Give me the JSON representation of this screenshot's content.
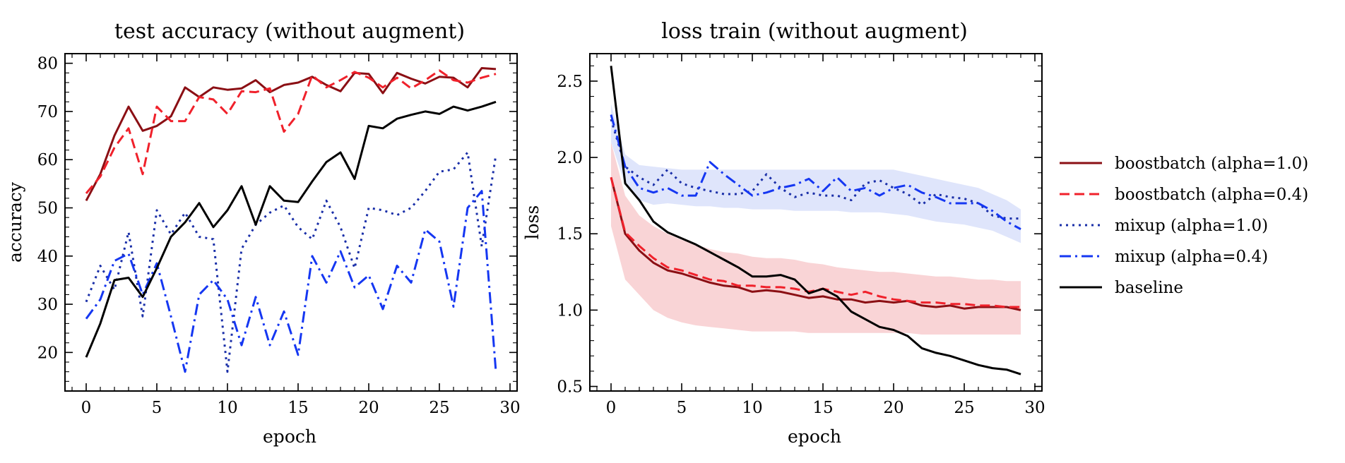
{
  "legend": {
    "position": "right",
    "entries": [
      {
        "label": "boostbatch (alpha=1.0)",
        "color": "#8b0f14",
        "dash": "solid"
      },
      {
        "label": "boostbatch (alpha=0.4)",
        "color": "#f0212b",
        "dash": "dashed"
      },
      {
        "label": "mixup (alpha=1.0)",
        "color": "#1a2fa8",
        "dash": "dotted"
      },
      {
        "label": "mixup (alpha=0.4)",
        "color": "#1537f2",
        "dash": "dashdot"
      },
      {
        "label": "baseline",
        "color": "#000000",
        "dash": "solid"
      }
    ]
  },
  "chart_data": [
    {
      "type": "line",
      "title": "test accuracy (without augment)",
      "xlabel": "epoch",
      "ylabel": "accuracy",
      "xlim": [
        -1.5,
        30.5
      ],
      "ylim": [
        12,
        82
      ],
      "xticks": [
        0,
        5,
        10,
        15,
        20,
        25,
        30
      ],
      "yticks": [
        20,
        30,
        40,
        50,
        60,
        70,
        80
      ],
      "grid": false,
      "x": [
        0,
        1,
        2,
        3,
        4,
        5,
        6,
        7,
        8,
        9,
        10,
        11,
        12,
        13,
        14,
        15,
        16,
        17,
        18,
        19,
        20,
        21,
        22,
        23,
        24,
        25,
        26,
        27,
        28,
        29
      ],
      "series": [
        {
          "name": "boostbatch (alpha=1.0)",
          "values": [
            51.5,
            57,
            65,
            71,
            66,
            67,
            69,
            75,
            73,
            75,
            74.5,
            74.8,
            76.5,
            74,
            75.5,
            76,
            77.2,
            75.5,
            74.2,
            78,
            77.8,
            73.8,
            78,
            76.8,
            75.8,
            77.2,
            77,
            75,
            79,
            78.8
          ]
        },
        {
          "name": "boostbatch (alpha=0.4)",
          "values": [
            53,
            56.5,
            62.5,
            66.5,
            57,
            71,
            68,
            68,
            73,
            72.5,
            69.5,
            74.2,
            74,
            74.8,
            65.8,
            69.5,
            77.5,
            75,
            76.5,
            78.2,
            77,
            75,
            77,
            74.8,
            76.5,
            78.5,
            76.5,
            76,
            77,
            77.8
          ]
        },
        {
          "name": "mixup (alpha=1.0)",
          "values": [
            30.5,
            38,
            33,
            45,
            27.5,
            49.5,
            44.5,
            49,
            44,
            43.5,
            16,
            41.5,
            46.5,
            49,
            50.5,
            46,
            43.5,
            51.5,
            46,
            37.5,
            50,
            49.5,
            48.5,
            50,
            53.5,
            57.5,
            58,
            61.5,
            42,
            61
          ]
        },
        {
          "name": "mixup (alpha=0.4)",
          "values": [
            27,
            31,
            39,
            40.5,
            32,
            38.5,
            27.5,
            16,
            32,
            35,
            31,
            21.5,
            31.5,
            21.5,
            28.5,
            19.5,
            40,
            34.5,
            41,
            33.5,
            36,
            29,
            38,
            34.5,
            45.5,
            43,
            29.5,
            50,
            53.5,
            16
          ]
        },
        {
          "name": "baseline",
          "values": [
            19,
            26,
            35,
            35.5,
            31.5,
            37.5,
            44,
            47,
            51,
            46,
            49.5,
            54.5,
            46.5,
            54.5,
            51.5,
            51.2,
            55.5,
            59.5,
            61.5,
            56,
            67,
            66.5,
            68.5,
            69.3,
            70,
            69.5,
            71,
            70.2,
            71,
            72
          ]
        }
      ]
    },
    {
      "type": "line",
      "title": "loss train (without augment)",
      "xlabel": "epoch",
      "ylabel": "loss",
      "xlim": [
        -1.5,
        30.5
      ],
      "ylim": [
        0.47,
        2.68
      ],
      "xticks": [
        0,
        5,
        10,
        15,
        20,
        25,
        30
      ],
      "yticks": [
        0.5,
        1.0,
        1.5,
        2.0,
        2.5
      ],
      "grid": false,
      "x": [
        0,
        1,
        2,
        3,
        4,
        5,
        6,
        7,
        8,
        9,
        10,
        11,
        12,
        13,
        14,
        15,
        16,
        17,
        18,
        19,
        20,
        21,
        22,
        23,
        24,
        25,
        26,
        27,
        28,
        29
      ],
      "bands": [
        {
          "series": "boostbatch",
          "color": "#f7c6c8",
          "lower": [
            1.55,
            1.2,
            1.1,
            1.0,
            0.95,
            0.92,
            0.9,
            0.89,
            0.88,
            0.87,
            0.86,
            0.86,
            0.86,
            0.86,
            0.85,
            0.85,
            0.85,
            0.85,
            0.85,
            0.85,
            0.85,
            0.85,
            0.84,
            0.84,
            0.84,
            0.84,
            0.84,
            0.84,
            0.84,
            0.84
          ],
          "upper": [
            2.1,
            1.75,
            1.62,
            1.55,
            1.5,
            1.46,
            1.43,
            1.4,
            1.38,
            1.37,
            1.35,
            1.34,
            1.34,
            1.33,
            1.31,
            1.3,
            1.28,
            1.27,
            1.26,
            1.25,
            1.25,
            1.24,
            1.23,
            1.22,
            1.22,
            1.21,
            1.2,
            1.2,
            1.19,
            1.19
          ]
        },
        {
          "series": "mixup",
          "color": "#d4dcfa",
          "lower": [
            2.1,
            1.82,
            1.72,
            1.69,
            1.7,
            1.69,
            1.68,
            1.68,
            1.67,
            1.67,
            1.66,
            1.66,
            1.66,
            1.65,
            1.65,
            1.65,
            1.65,
            1.64,
            1.64,
            1.64,
            1.63,
            1.62,
            1.6,
            1.58,
            1.57,
            1.56,
            1.54,
            1.52,
            1.48,
            1.44
          ]
        },
        {
          "series": "mixup",
          "color": "#d4dcfa",
          "upper": [
            2.35,
            2.02,
            1.95,
            1.94,
            1.93,
            1.92,
            1.92,
            1.92,
            1.92,
            1.92,
            1.92,
            1.92,
            1.92,
            1.92,
            1.92,
            1.92,
            1.92,
            1.92,
            1.92,
            1.92,
            1.92,
            1.9,
            1.88,
            1.86,
            1.84,
            1.82,
            1.8,
            1.76,
            1.72,
            1.66
          ]
        }
      ],
      "series": [
        {
          "name": "boostbatch (alpha=1.0)",
          "values": [
            1.87,
            1.5,
            1.39,
            1.31,
            1.26,
            1.24,
            1.21,
            1.18,
            1.16,
            1.15,
            1.12,
            1.13,
            1.12,
            1.1,
            1.08,
            1.09,
            1.07,
            1.07,
            1.05,
            1.06,
            1.05,
            1.06,
            1.03,
            1.02,
            1.03,
            1.01,
            1.02,
            1.02,
            1.02,
            1.0
          ]
        },
        {
          "name": "boostbatch (alpha=0.4)",
          "values": [
            1.87,
            1.51,
            1.42,
            1.34,
            1.28,
            1.26,
            1.23,
            1.2,
            1.19,
            1.16,
            1.16,
            1.15,
            1.15,
            1.14,
            1.12,
            1.14,
            1.12,
            1.1,
            1.12,
            1.09,
            1.07,
            1.06,
            1.05,
            1.05,
            1.04,
            1.04,
            1.03,
            1.03,
            1.02,
            1.02
          ]
        },
        {
          "name": "mixup (alpha=1.0)",
          "values": [
            2.25,
            1.94,
            1.87,
            1.82,
            1.92,
            1.83,
            1.8,
            1.78,
            1.76,
            1.76,
            1.78,
            1.89,
            1.8,
            1.74,
            1.77,
            1.75,
            1.75,
            1.72,
            1.83,
            1.85,
            1.8,
            1.76,
            1.69,
            1.76,
            1.74,
            1.73,
            1.7,
            1.62,
            1.6,
            1.6
          ]
        },
        {
          "name": "mixup (alpha=0.4)",
          "values": [
            2.28,
            1.94,
            1.8,
            1.77,
            1.8,
            1.75,
            1.75,
            1.97,
            1.89,
            1.82,
            1.75,
            1.77,
            1.8,
            1.82,
            1.86,
            1.78,
            1.87,
            1.78,
            1.8,
            1.75,
            1.8,
            1.82,
            1.77,
            1.74,
            1.7,
            1.7,
            1.7,
            1.65,
            1.58,
            1.53
          ]
        },
        {
          "name": "baseline",
          "values": [
            2.6,
            1.83,
            1.72,
            1.58,
            1.51,
            1.47,
            1.43,
            1.38,
            1.33,
            1.28,
            1.22,
            1.22,
            1.23,
            1.2,
            1.11,
            1.14,
            1.09,
            0.99,
            0.94,
            0.89,
            0.87,
            0.83,
            0.75,
            0.72,
            0.7,
            0.67,
            0.64,
            0.62,
            0.61,
            0.58
          ]
        }
      ]
    }
  ]
}
